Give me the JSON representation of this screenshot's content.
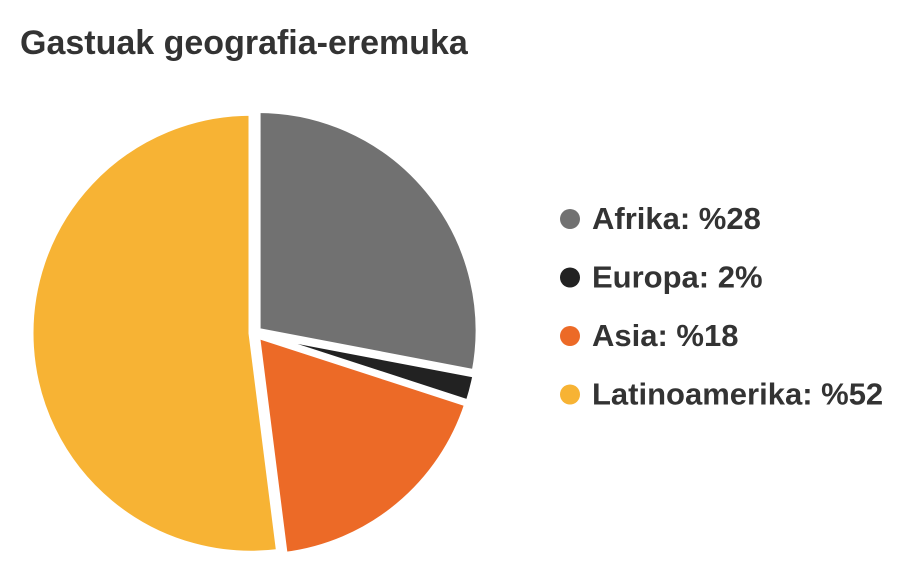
{
  "chart_data": {
    "type": "pie",
    "title": "Gastuak geografia-eremuka",
    "categories": [
      "Afrika: %28",
      "Europa: 2%",
      "Asia: %18",
      "Latinoamerika: %52"
    ],
    "values": [
      28,
      2,
      18,
      52
    ],
    "colors": [
      "#717171",
      "#222222",
      "#ec6a27",
      "#f7b334"
    ],
    "legend": "right"
  }
}
